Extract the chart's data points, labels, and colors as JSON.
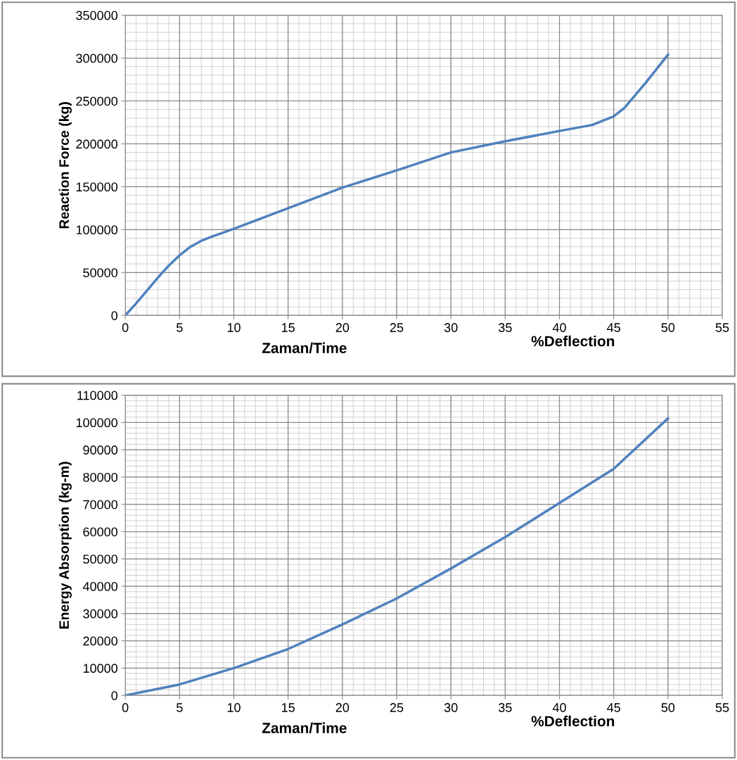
{
  "chart_data": [
    {
      "type": "line",
      "ylabel": "Reaction Force (kg)",
      "xlabel": "Zaman/Time",
      "annotations": [
        "%Deflection"
      ],
      "series": [
        {
          "color": "#4f81bd",
          "x": [
            0,
            1,
            2,
            3,
            4,
            5,
            6,
            7,
            8,
            10,
            15,
            20,
            25,
            30,
            35,
            40,
            43,
            45,
            46,
            47,
            48,
            49,
            50
          ],
          "values": [
            0,
            14000,
            29000,
            44000,
            58000,
            70000,
            80000,
            87000,
            92000,
            101000,
            125000,
            149000,
            169000,
            190000,
            203000,
            215000,
            222000,
            232000,
            242000,
            257000,
            272000,
            288000,
            304000
          ]
        }
      ],
      "xlim": [
        0,
        55
      ],
      "xticks": [
        0,
        5,
        10,
        15,
        20,
        25,
        30,
        35,
        40,
        45,
        50,
        55
      ],
      "ylim": [
        0,
        350000
      ],
      "yticks": [
        0,
        50000,
        100000,
        150000,
        200000,
        250000,
        300000,
        350000
      ],
      "grid": true,
      "legend": false,
      "marker": "none",
      "line_style": "solid"
    },
    {
      "type": "line",
      "ylabel": "Energy Absorption (kg-m)",
      "xlabel": "Zaman/Time",
      "annotations": [
        "%Deflection"
      ],
      "series": [
        {
          "color": "#4f81bd",
          "x": [
            0,
            5,
            10,
            15,
            20,
            25,
            30,
            35,
            40,
            45,
            50
          ],
          "values": [
            0,
            4000,
            10000,
            17000,
            26000,
            35500,
            46500,
            58000,
            70500,
            83000,
            101500
          ]
        }
      ],
      "xlim": [
        0,
        55
      ],
      "xticks": [
        0,
        5,
        10,
        15,
        20,
        25,
        30,
        35,
        40,
        45,
        50,
        55
      ],
      "ylim": [
        0,
        110000
      ],
      "yticks": [
        0,
        10000,
        20000,
        30000,
        40000,
        50000,
        60000,
        70000,
        80000,
        90000,
        100000,
        110000
      ],
      "grid": true,
      "legend": false,
      "marker": "none",
      "line_style": "solid"
    }
  ]
}
